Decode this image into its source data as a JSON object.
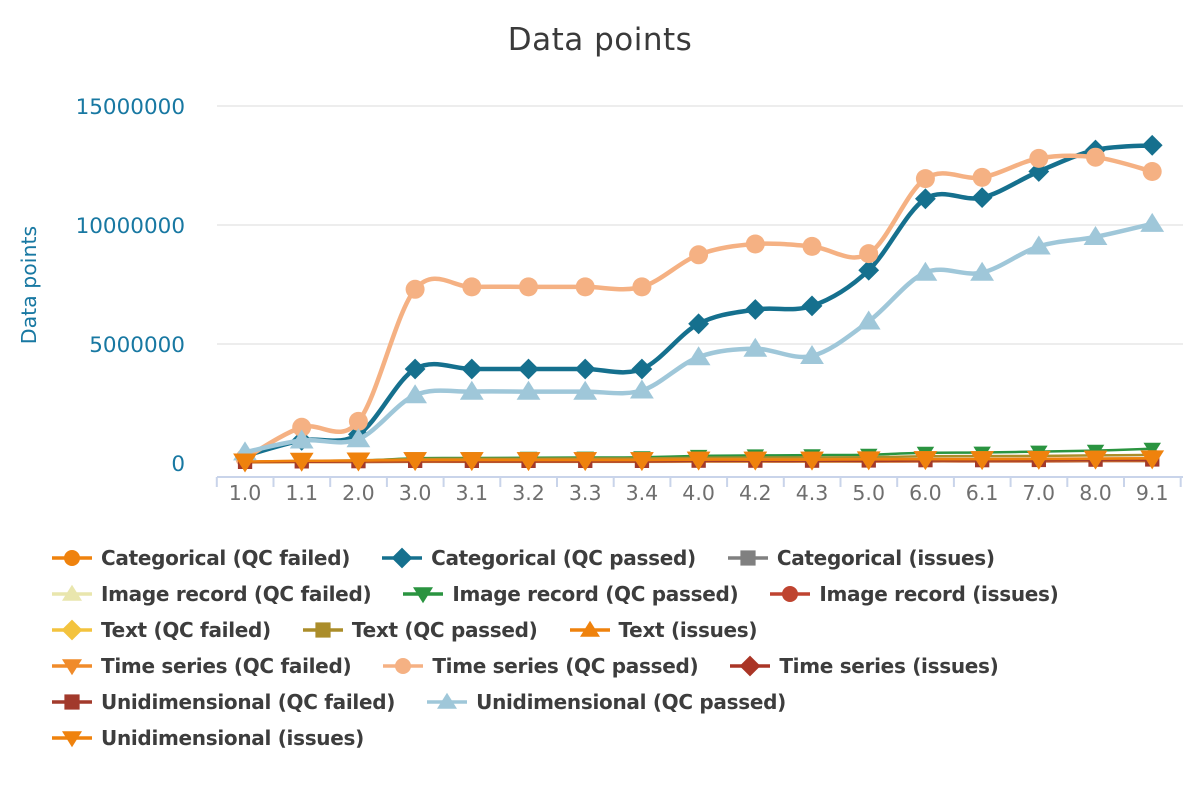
{
  "title": "Data points",
  "chart_data": {
    "type": "line",
    "title": "Data points",
    "xlabel": "",
    "ylabel": "Data points",
    "ylim": [
      0,
      15000000
    ],
    "yticks": [
      0,
      5000000,
      10000000,
      15000000
    ],
    "grid": "horizontal",
    "legend_position": "bottom",
    "line_shape": "spline",
    "categories": [
      "1.0",
      "1.1",
      "2.0",
      "3.0",
      "3.1",
      "3.2",
      "3.3",
      "3.4",
      "4.0",
      "4.2",
      "4.3",
      "5.0",
      "6.0",
      "6.1",
      "7.0",
      "8.0",
      "9.1"
    ],
    "series": [
      {
        "name": "Categorical (QC failed)",
        "color": "#ef820d",
        "marker": "circle",
        "line_width": 2,
        "marker_size": 4.5,
        "values": [
          20000,
          40000,
          40000,
          60000,
          60000,
          60000,
          60000,
          60000,
          80000,
          80000,
          80000,
          80000,
          90000,
          90000,
          90000,
          100000,
          100000
        ]
      },
      {
        "name": "Categorical (QC passed)",
        "color": "#15708e",
        "marker": "diamond",
        "line_width": 4.5,
        "marker_size": 8,
        "values": [
          300000,
          950000,
          1200000,
          3950000,
          3950000,
          3950000,
          3950000,
          3950000,
          5850000,
          6450000,
          6600000,
          8100000,
          11100000,
          11150000,
          12250000,
          13150000,
          13350000
        ]
      },
      {
        "name": "Categorical (issues)",
        "color": "#808080",
        "marker": "square",
        "line_width": 2,
        "marker_size": 4.5,
        "values": [
          30000,
          50000,
          50000,
          70000,
          70000,
          70000,
          70000,
          70000,
          80000,
          80000,
          80000,
          90000,
          100000,
          100000,
          100000,
          110000,
          110000
        ]
      },
      {
        "name": "Image record (QC failed)",
        "color": "#e9e6ad",
        "marker": "triangle-up",
        "line_width": 2,
        "marker_size": 4.5,
        "values": [
          10000,
          20000,
          20000,
          30000,
          30000,
          30000,
          30000,
          30000,
          40000,
          40000,
          40000,
          40000,
          50000,
          50000,
          50000,
          60000,
          60000
        ]
      },
      {
        "name": "Image record (QC passed)",
        "color": "#2a9440",
        "marker": "triangle-down",
        "line_width": 2.5,
        "marker_size": 7,
        "values": [
          30000,
          60000,
          90000,
          200000,
          210000,
          220000,
          230000,
          240000,
          300000,
          320000,
          330000,
          350000,
          430000,
          440000,
          480000,
          520000,
          600000
        ]
      },
      {
        "name": "Image record (issues)",
        "color": "#bf4430",
        "marker": "circle",
        "line_width": 2,
        "marker_size": 4.5,
        "values": [
          20000,
          30000,
          30000,
          40000,
          40000,
          40000,
          40000,
          40000,
          50000,
          50000,
          50000,
          50000,
          60000,
          60000,
          60000,
          70000,
          70000
        ]
      },
      {
        "name": "Text (QC failed)",
        "color": "#f3c33e",
        "marker": "diamond",
        "line_width": 2,
        "marker_size": 4.5,
        "values": [
          20000,
          30000,
          40000,
          50000,
          50000,
          50000,
          50000,
          50000,
          60000,
          60000,
          60000,
          70000,
          80000,
          80000,
          80000,
          90000,
          90000
        ]
      },
      {
        "name": "Text (QC passed)",
        "color": "#ab8d2a",
        "marker": "square",
        "line_width": 2.5,
        "marker_size": 5,
        "values": [
          40000,
          80000,
          110000,
          170000,
          180000,
          180000,
          190000,
          190000,
          220000,
          230000,
          230000,
          240000,
          280000,
          290000,
          300000,
          320000,
          340000
        ]
      },
      {
        "name": "Text (issues)",
        "color": "#ef820d",
        "marker": "triangle-up",
        "line_width": 2,
        "marker_size": 5,
        "values": [
          30000,
          50000,
          60000,
          80000,
          80000,
          80000,
          80000,
          80000,
          90000,
          90000,
          90000,
          100000,
          110000,
          110000,
          110000,
          120000,
          120000
        ]
      },
      {
        "name": "Time series (QC failed)",
        "color": "#f08b2a",
        "marker": "triangle-down",
        "line_width": 2.5,
        "marker_size": 9,
        "values": [
          60000,
          90000,
          100000,
          130000,
          130000,
          130000,
          130000,
          130000,
          150000,
          150000,
          150000,
          160000,
          170000,
          170000,
          180000,
          190000,
          200000
        ]
      },
      {
        "name": "Time series (QC passed)",
        "color": "#f5b183",
        "marker": "circle",
        "line_width": 4.5,
        "marker_size": 9.5,
        "values": [
          200000,
          1500000,
          1750000,
          7300000,
          7400000,
          7400000,
          7400000,
          7400000,
          8750000,
          9200000,
          9100000,
          8800000,
          11950000,
          12000000,
          12800000,
          12850000,
          12250000
        ]
      },
      {
        "name": "Time series (issues)",
        "color": "#aa3526",
        "marker": "diamond",
        "line_width": 2,
        "marker_size": 5,
        "values": [
          30000,
          40000,
          50000,
          60000,
          60000,
          60000,
          60000,
          60000,
          70000,
          70000,
          70000,
          80000,
          90000,
          90000,
          90000,
          100000,
          100000
        ]
      },
      {
        "name": "Unidimensional (QC failed)",
        "color": "#a23a2c",
        "marker": "square",
        "line_width": 2.5,
        "marker_size": 7.5,
        "values": [
          50000,
          70000,
          80000,
          90000,
          90000,
          90000,
          90000,
          90000,
          100000,
          100000,
          100000,
          110000,
          120000,
          120000,
          130000,
          140000,
          150000
        ]
      },
      {
        "name": "Unidimensional (QC passed)",
        "color": "#9fc7d9",
        "marker": "triangle-up",
        "line_width": 4.5,
        "marker_size": 9.5,
        "values": [
          450000,
          950000,
          1000000,
          2850000,
          3000000,
          3000000,
          3000000,
          3050000,
          4450000,
          4800000,
          4500000,
          5950000,
          8000000,
          8000000,
          9100000,
          9500000,
          10050000
        ]
      },
      {
        "name": "Unidimensional (issues)",
        "color": "#ef820d",
        "marker": "triangle-down",
        "line_width": 2.5,
        "marker_size": 9.5,
        "values": [
          60000,
          90000,
          100000,
          120000,
          120000,
          120000,
          120000,
          120000,
          140000,
          140000,
          140000,
          150000,
          160000,
          160000,
          170000,
          180000,
          190000
        ]
      }
    ],
    "legend_rows": [
      [
        0,
        1,
        2
      ],
      [
        3,
        4,
        5
      ],
      [
        6,
        7,
        8
      ],
      [
        9,
        10,
        11
      ],
      [
        12,
        13
      ],
      [
        14
      ]
    ],
    "colors": {
      "title_text": "#3a3a3a",
      "y_axis_text": "#1878a2",
      "x_tick_text": "#6f6f6f",
      "grid_line": "#e7e7e7",
      "axis_line": "#c9d4ea",
      "legend_text": "#3d3d3d",
      "background": "#ffffff"
    }
  }
}
